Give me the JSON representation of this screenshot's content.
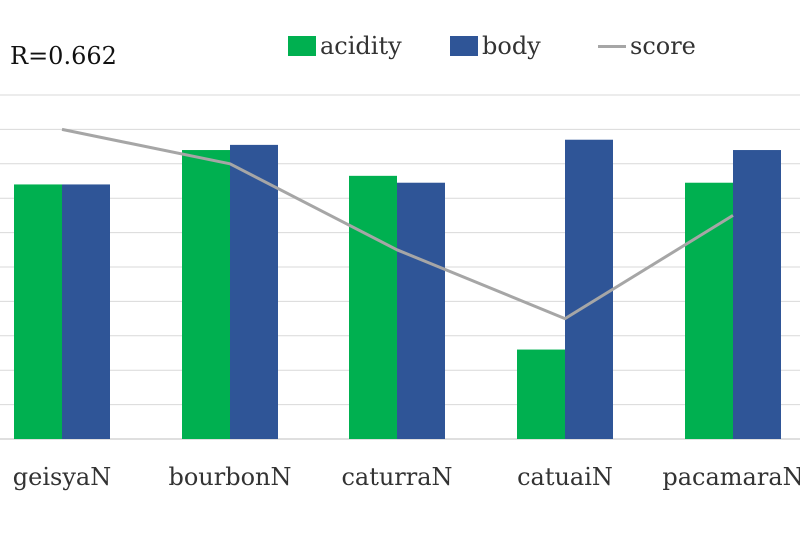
{
  "annotation": "R=0.662",
  "colors": {
    "acidity": "#00b050",
    "body": "#2f5597",
    "score": "#a6a6a6",
    "grid": "#d9d9d9"
  },
  "chart_data": {
    "type": "bar",
    "categories": [
      "geisyaN",
      "bourbonN",
      "caturraN",
      "catuaiN",
      "pacamaraN"
    ],
    "series": [
      {
        "name": "acidity",
        "type": "bar",
        "values": [
          7.4,
          8.4,
          7.65,
          2.6,
          7.45
        ]
      },
      {
        "name": "body",
        "type": "bar",
        "values": [
          7.4,
          8.55,
          7.45,
          8.7,
          8.4
        ]
      },
      {
        "name": "score",
        "type": "line",
        "values": [
          9.0,
          8.0,
          5.5,
          3.5,
          6.5
        ]
      }
    ],
    "ylim": [
      0,
      10
    ],
    "grid": true,
    "legend": "top"
  }
}
